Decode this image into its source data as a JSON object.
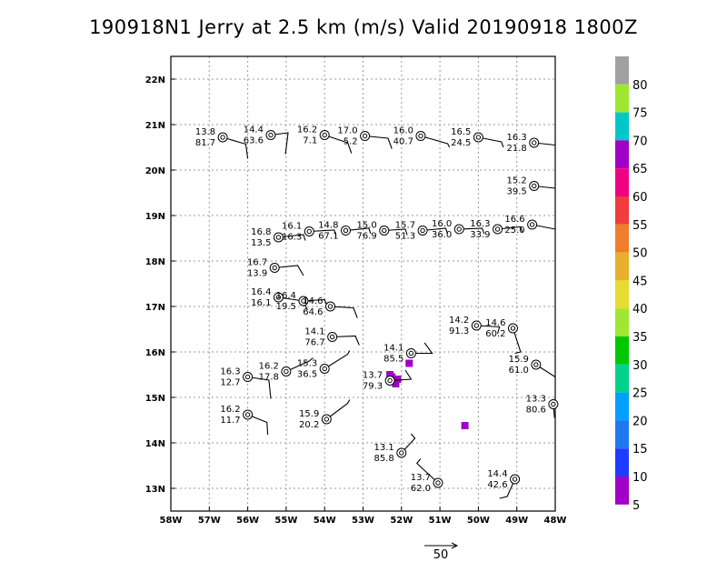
{
  "title": "190918N1 Jerry at 2.5 km (m/s) Valid 20190918  1800Z",
  "chart_data": {
    "type": "wind-barb-station-plot",
    "title": "190918N1 Jerry at 2.5 km (m/s) Valid 20190918  1800Z",
    "xlim": [
      -58,
      -48
    ],
    "ylim": [
      12.5,
      22.5
    ],
    "xticks": [
      -58,
      -57,
      -56,
      -55,
      -54,
      -53,
      -52,
      -51,
      -50,
      -49,
      -48
    ],
    "xtick_labels": [
      "58W",
      "57W",
      "56W",
      "55W",
      "54W",
      "53W",
      "52W",
      "51W",
      "50W",
      "49W",
      "48W"
    ],
    "yticks": [
      13,
      14,
      15,
      16,
      17,
      18,
      19,
      20,
      21,
      22
    ],
    "ytick_labels": [
      "13N",
      "14N",
      "15N",
      "16N",
      "17N",
      "18N",
      "19N",
      "20N",
      "21N",
      "22N"
    ],
    "grid": true,
    "stations": [
      {
        "lon": -56.65,
        "lat": 20.72,
        "top": "13.8",
        "bottom": "81.7",
        "label_side": "left",
        "barb": [
          [
            -56.65,
            20.72
          ],
          [
            -56.05,
            20.57
          ],
          [
            -56.0,
            20.25
          ]
        ]
      },
      {
        "lon": -55.4,
        "lat": 20.77,
        "top": "14.4",
        "bottom": "63.6",
        "label_side": "left",
        "barb": [
          [
            -55.4,
            20.77
          ],
          [
            -54.95,
            20.82
          ],
          [
            -55.02,
            20.35
          ]
        ]
      },
      {
        "lon": -54.0,
        "lat": 20.77,
        "top": "16.2",
        "bottom": "7.1",
        "label_side": "left",
        "barb": [
          [
            -54.0,
            20.77
          ],
          [
            -53.4,
            20.6
          ],
          [
            -53.3,
            20.37
          ]
        ]
      },
      {
        "lon": -52.95,
        "lat": 20.75,
        "top": "17.0",
        "bottom": "5.2",
        "label_side": "left",
        "barb": [
          [
            -52.95,
            20.75
          ],
          [
            -52.35,
            20.7
          ],
          [
            -52.25,
            20.47
          ]
        ]
      },
      {
        "lon": -51.5,
        "lat": 20.75,
        "top": "16.0",
        "bottom": "40.7",
        "label_side": "left",
        "barb": [
          [
            -51.5,
            20.75
          ],
          [
            -50.8,
            20.58
          ],
          [
            -50.75,
            20.5
          ]
        ]
      },
      {
        "lon": -50.0,
        "lat": 20.72,
        "top": "16.5",
        "bottom": "24.5",
        "label_side": "left",
        "barb": [
          [
            -50.0,
            20.72
          ],
          [
            -49.4,
            20.62
          ],
          [
            -49.35,
            20.5
          ]
        ]
      },
      {
        "lon": -48.55,
        "lat": 20.6,
        "top": "16.3",
        "bottom": "21.8",
        "label_side": "left",
        "barb": [
          [
            -48.55,
            20.6
          ],
          [
            -48.0,
            20.55
          ]
        ]
      },
      {
        "lon": -48.55,
        "lat": 19.65,
        "top": "15.2",
        "bottom": "39.5",
        "label_side": "left",
        "barb": [
          [
            -48.55,
            19.65
          ],
          [
            -48.0,
            19.6
          ]
        ]
      },
      {
        "lon": -55.2,
        "lat": 18.52,
        "top": "16.8",
        "bottom": "13.5",
        "label_side": "left",
        "barb": [
          [
            -55.2,
            18.52
          ],
          [
            -54.55,
            18.58
          ],
          [
            -54.5,
            18.45
          ]
        ]
      },
      {
        "lon": -54.4,
        "lat": 18.65,
        "top": "16.1",
        "bottom": "16.3",
        "label_side": "left",
        "barb": [
          [
            -54.4,
            18.65
          ],
          [
            -53.75,
            18.68
          ],
          [
            -53.7,
            18.55
          ]
        ]
      },
      {
        "lon": -53.45,
        "lat": 18.67,
        "top": "14.8",
        "bottom": "67.1",
        "label_side": "left",
        "barb": [
          [
            -53.45,
            18.67
          ],
          [
            -52.85,
            18.72
          ],
          [
            -52.8,
            18.6
          ]
        ]
      },
      {
        "lon": -52.45,
        "lat": 18.67,
        "top": "15.0",
        "bottom": "76.9",
        "label_side": "left",
        "barb": [
          [
            -52.45,
            18.67
          ],
          [
            -51.9,
            18.7
          ],
          [
            -51.85,
            18.57
          ]
        ]
      },
      {
        "lon": -51.45,
        "lat": 18.67,
        "top": "15.7",
        "bottom": "51.3",
        "label_side": "left",
        "barb": [
          [
            -51.45,
            18.67
          ],
          [
            -50.85,
            18.72
          ],
          [
            -50.8,
            18.6
          ]
        ]
      },
      {
        "lon": -50.5,
        "lat": 18.7,
        "top": "16.0",
        "bottom": "36.0",
        "label_side": "left",
        "barb": [
          [
            -50.5,
            18.7
          ],
          [
            -49.9,
            18.72
          ],
          [
            -49.85,
            18.6
          ]
        ]
      },
      {
        "lon": -49.5,
        "lat": 18.7,
        "top": "16.3",
        "bottom": "33.9",
        "label_side": "left",
        "barb": [
          [
            -49.5,
            18.7
          ],
          [
            -48.9,
            18.75
          ],
          [
            -48.85,
            18.63
          ]
        ]
      },
      {
        "lon": -48.6,
        "lat": 18.8,
        "top": "16.6",
        "bottom": "25.0",
        "label_side": "left",
        "barb": [
          [
            -48.6,
            18.8
          ],
          [
            -48.0,
            18.7
          ]
        ]
      },
      {
        "lon": -55.3,
        "lat": 17.85,
        "top": "16.7",
        "bottom": "13.9",
        "label_side": "left",
        "barb": [
          [
            -55.3,
            17.85
          ],
          [
            -54.7,
            17.9
          ],
          [
            -54.55,
            17.68
          ]
        ]
      },
      {
        "lon": -55.2,
        "lat": 17.2,
        "top": "16.4",
        "bottom": "16.1",
        "label_side": "left",
        "barb": [
          [
            -55.2,
            17.2
          ],
          [
            -54.55,
            17.12
          ],
          [
            -54.45,
            16.92
          ]
        ]
      },
      {
        "lon": -54.55,
        "lat": 17.12,
        "top": "16.4",
        "bottom": "19.5",
        "label_side": "left",
        "barb": [
          [
            -54.55,
            17.12
          ],
          [
            -54.0,
            17.15
          ],
          [
            -53.9,
            16.95
          ]
        ]
      },
      {
        "lon": -53.85,
        "lat": 17.0,
        "top": "14.6",
        "bottom": "64.6",
        "label_side": "left",
        "barb": [
          [
            -53.85,
            17.0
          ],
          [
            -53.25,
            16.97
          ],
          [
            -53.15,
            16.75
          ]
        ]
      },
      {
        "lon": -53.8,
        "lat": 16.33,
        "top": "14.1",
        "bottom": "76.7",
        "label_side": "left",
        "barb": [
          [
            -53.8,
            16.33
          ],
          [
            -53.2,
            16.35
          ],
          [
            -53.1,
            16.15
          ]
        ]
      },
      {
        "lon": -51.75,
        "lat": 15.97,
        "top": "14.1",
        "bottom": "85.5",
        "label_side": "left",
        "barb": [
          [
            -51.75,
            15.97
          ],
          [
            -51.2,
            15.97
          ],
          [
            -51.4,
            16.2
          ]
        ]
      },
      {
        "lon": -50.05,
        "lat": 16.58,
        "top": "14.2",
        "bottom": "91.3",
        "label_side": "left",
        "barb": [
          [
            -50.05,
            16.58
          ],
          [
            -49.45,
            16.55
          ],
          [
            -49.5,
            16.4
          ]
        ]
      },
      {
        "lon": -49.1,
        "lat": 16.52,
        "top": "14.6",
        "bottom": "60.2",
        "label_side": "left",
        "barb": [
          [
            -49.1,
            16.52
          ],
          [
            -48.9,
            16.0
          ],
          [
            -49.05,
            15.97
          ]
        ]
      },
      {
        "lon": -48.5,
        "lat": 15.72,
        "top": "15.9",
        "bottom": "61.0",
        "label_side": "left",
        "barb": [
          [
            -48.5,
            15.72
          ],
          [
            -48.0,
            15.45
          ]
        ]
      },
      {
        "lon": -48.05,
        "lat": 14.85,
        "top": "13.3",
        "bottom": "80.6",
        "label_side": "left",
        "barb": [
          [
            -48.05,
            14.85
          ],
          [
            -48.02,
            14.55
          ]
        ]
      },
      {
        "lon": -55.0,
        "lat": 15.57,
        "top": "16.2",
        "bottom": "17.8",
        "label_side": "left",
        "barb": [
          [
            -55.0,
            15.57
          ],
          [
            -54.4,
            15.8
          ],
          [
            -54.3,
            15.87
          ]
        ]
      },
      {
        "lon": -54.0,
        "lat": 15.63,
        "top": "15.3",
        "bottom": "36.5",
        "label_side": "left",
        "barb": [
          [
            -54.0,
            15.63
          ],
          [
            -53.4,
            15.95
          ],
          [
            -53.35,
            16.03
          ]
        ]
      },
      {
        "lon": -52.3,
        "lat": 15.37,
        "top": "13.7",
        "bottom": "79.3",
        "label_side": "left",
        "barb": [
          [
            -52.3,
            15.37
          ],
          [
            -51.75,
            15.4
          ],
          [
            -51.9,
            15.6
          ]
        ]
      },
      {
        "lon": -56.0,
        "lat": 15.45,
        "top": "16.3",
        "bottom": "12.7",
        "label_side": "left",
        "barb": [
          [
            -56.0,
            15.45
          ],
          [
            -55.45,
            15.38
          ],
          [
            -55.4,
            14.97
          ]
        ]
      },
      {
        "lon": -56.0,
        "lat": 14.62,
        "top": "16.2",
        "bottom": "11.7",
        "label_side": "left",
        "barb": [
          [
            -56.0,
            14.62
          ],
          [
            -55.5,
            14.45
          ],
          [
            -55.48,
            14.18
          ]
        ]
      },
      {
        "lon": -53.95,
        "lat": 14.52,
        "top": "15.9",
        "bottom": "20.2",
        "label_side": "left",
        "barb": [
          [
            -53.95,
            14.52
          ],
          [
            -53.4,
            14.87
          ],
          [
            -53.35,
            14.95
          ]
        ]
      },
      {
        "lon": -52.0,
        "lat": 13.78,
        "top": "13.1",
        "bottom": "85.8",
        "label_side": "left",
        "barb": [
          [
            -52.0,
            13.78
          ],
          [
            -51.65,
            14.1
          ],
          [
            -51.75,
            14.2
          ]
        ]
      },
      {
        "lon": -51.05,
        "lat": 13.12,
        "top": "13.7",
        "bottom": "62.0",
        "label_side": "left",
        "barb": [
          [
            -51.05,
            13.12
          ],
          [
            -51.6,
            13.55
          ],
          [
            -51.5,
            13.65
          ]
        ]
      },
      {
        "lon": -49.05,
        "lat": 13.2,
        "top": "14.4",
        "bottom": "42.6",
        "label_side": "left",
        "barb": [
          [
            -49.05,
            13.2
          ],
          [
            -49.25,
            12.82
          ],
          [
            -49.45,
            12.78
          ]
        ]
      }
    ],
    "shaded_cells": [
      {
        "lon": -52.25,
        "lat": 15.45,
        "color": "#a000c8"
      },
      {
        "lon": -52.1,
        "lat": 15.4,
        "color": "#a000c8"
      },
      {
        "lon": -52.15,
        "lat": 15.3,
        "color": "#a000c8"
      },
      {
        "lon": -51.8,
        "lat": 15.75,
        "color": "#a000c8"
      },
      {
        "lon": -52.3,
        "lat": 15.5,
        "color": "#a000c8"
      },
      {
        "lon": -50.35,
        "lat": 14.38,
        "color": "#a000c8"
      }
    ],
    "colorbar": {
      "labels": [
        "80",
        "75",
        "70",
        "65",
        "60",
        "55",
        "50",
        "45",
        "40",
        "35",
        "30",
        "25",
        "20",
        "15",
        "10",
        "5"
      ],
      "colors": [
        "#a0a0a0",
        "#a0e632",
        "#00c8c8",
        "#a000c8",
        "#f00082",
        "#f03c3c",
        "#f07d28",
        "#e6af2d",
        "#e6dc32",
        "#a0e632",
        "#00c800",
        "#00d28c",
        "#00a0ff",
        "#1e78f0",
        "#1e3cff",
        "#a000c8"
      ]
    },
    "reference_vector": {
      "label": "50"
    }
  }
}
